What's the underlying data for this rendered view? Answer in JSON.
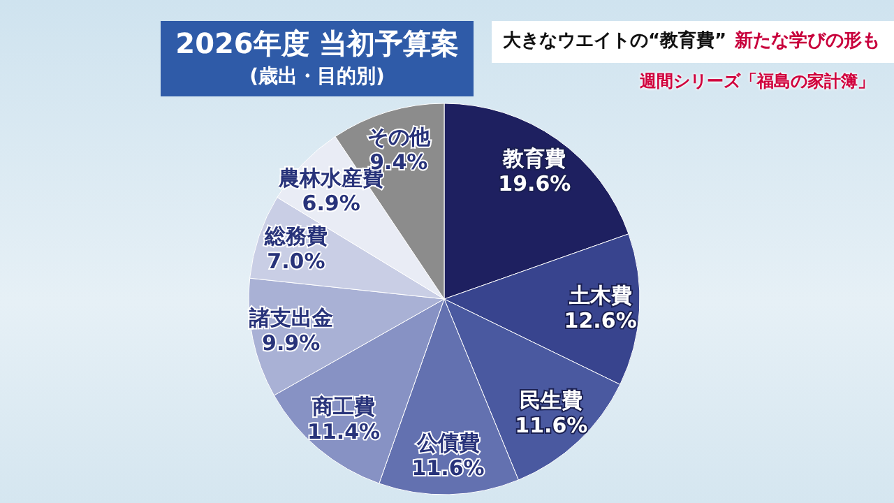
{
  "chart_data": {
    "type": "pie",
    "title": "2026年度 当初予算案",
    "subtitle": "(歳出・目的別)",
    "annotations": [
      "大きなウエイトの“教育費”",
      "新たな学びの形も",
      "週間シリーズ「福島の家計簿」"
    ],
    "categories": [
      "教育費",
      "土木費",
      "民生費",
      "公債費",
      "商工費",
      "諸支出金",
      "総務費",
      "農林水産費",
      "その他"
    ],
    "values": [
      19.6,
      12.6,
      11.6,
      11.6,
      11.4,
      9.9,
      7.0,
      6.9,
      9.4
    ],
    "value_labels": [
      "19.6%",
      "12.6%",
      "11.6%",
      "11.6%",
      "11.4%",
      "9.9%",
      "7.0%",
      "6.9%",
      "9.4%"
    ],
    "colors": [
      "#1e2060",
      "#38448e",
      "#4a59a0",
      "#6371b0",
      "#8792c4",
      "#a9b1d5",
      "#c9cee5",
      "#e9ecf5",
      "#8c8c8c"
    ],
    "legend": false
  }
}
